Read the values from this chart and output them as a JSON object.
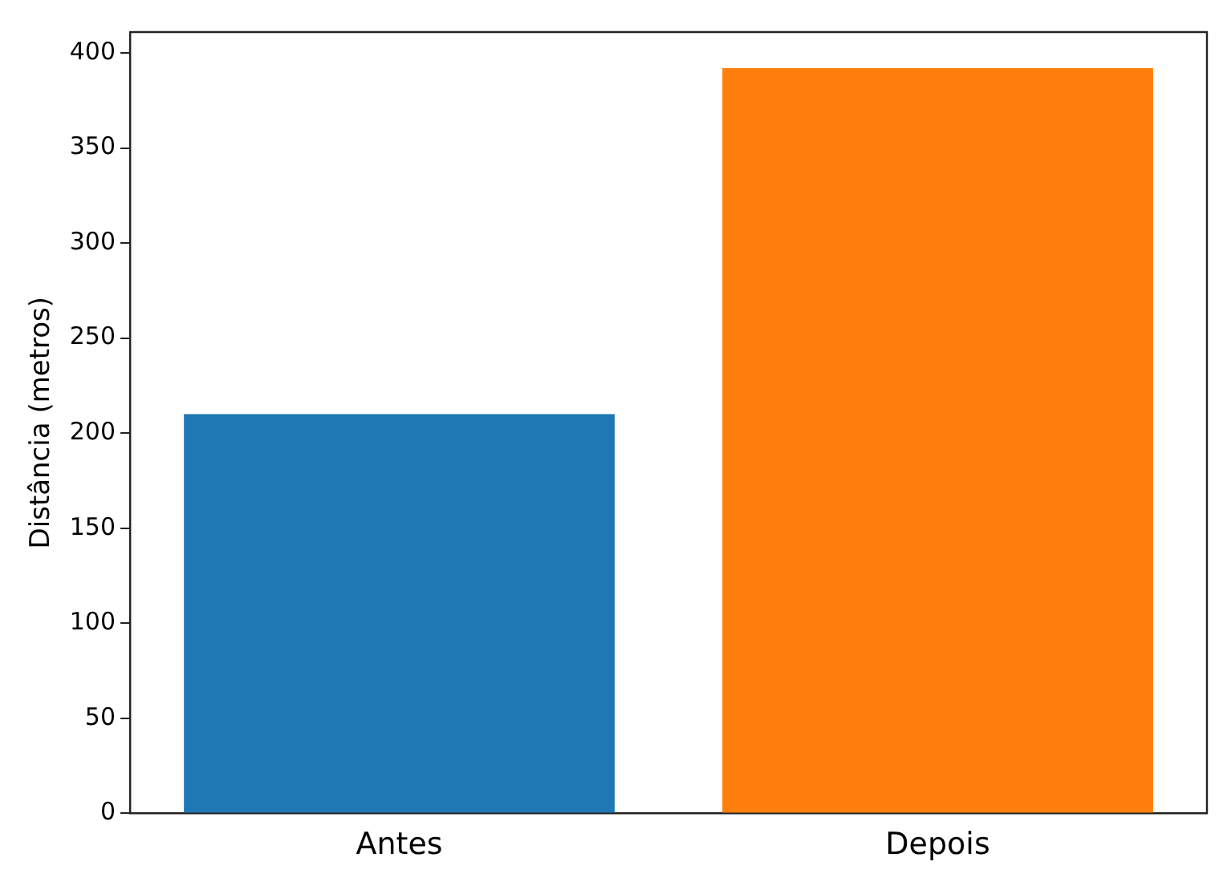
{
  "chart_data": {
    "type": "bar",
    "ylabel": "Distância (metros)",
    "categories": [
      "Antes",
      "Depois"
    ],
    "colors": [
      "#1f77b4",
      "#ff7f0e"
    ],
    "values": [
      210,
      392
    ],
    "ylim": [
      0,
      411
    ],
    "yticks": [
      0,
      50,
      100,
      150,
      200,
      250,
      300,
      350,
      400
    ],
    "grid": false,
    "legend": false
  }
}
